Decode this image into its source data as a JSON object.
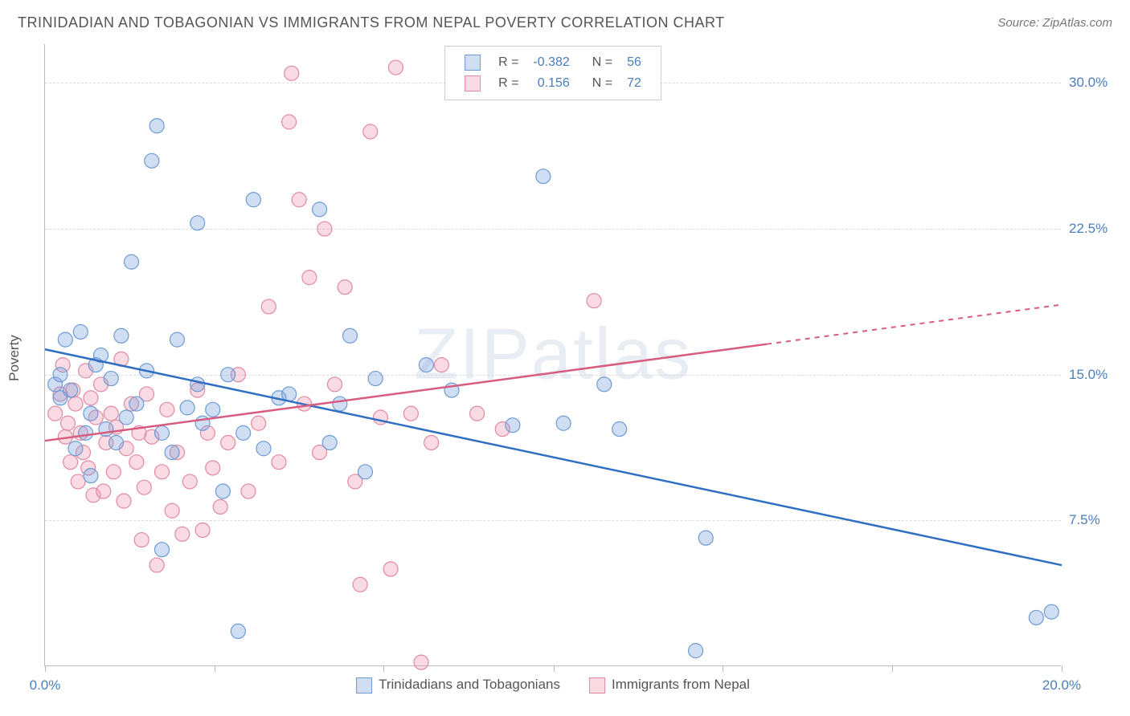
{
  "title": "TRINIDADIAN AND TOBAGONIAN VS IMMIGRANTS FROM NEPAL POVERTY CORRELATION CHART",
  "source_label": "Source:",
  "source_name": "ZipAtlas.com",
  "ylabel": "Poverty",
  "watermark": "ZIPatlas",
  "chart": {
    "type": "scatter",
    "xlim": [
      0,
      20
    ],
    "ylim": [
      0,
      32
    ],
    "xtick_positions": [
      0,
      3.33,
      6.66,
      10,
      13.33,
      16.66,
      20
    ],
    "xtick_labels_shown": {
      "0": "0.0%",
      "20": "20.0%"
    },
    "ytick_positions": [
      7.5,
      15.0,
      22.5,
      30.0
    ],
    "ytick_labels": [
      "7.5%",
      "15.0%",
      "22.5%",
      "30.0%"
    ],
    "grid_color": "#dddddd",
    "axis_color": "#bbbbbb",
    "background_color": "#ffffff",
    "series": [
      {
        "name": "Trinidadians and Tobagonians",
        "fill": "rgba(120,160,220,0.35)",
        "stroke": "#6d9bd3",
        "line_color": "#2f6fc2",
        "marker_radius": 9,
        "R": "-0.382",
        "N": "56",
        "trend": {
          "x1": 0,
          "y1": 16.3,
          "x2": 20,
          "y2": 5.2,
          "dash_after_x": null
        },
        "points": [
          [
            0.2,
            14.5
          ],
          [
            0.3,
            15.0
          ],
          [
            0.3,
            13.8
          ],
          [
            0.4,
            16.8
          ],
          [
            0.5,
            14.2
          ],
          [
            0.6,
            11.2
          ],
          [
            0.7,
            17.2
          ],
          [
            0.8,
            12.0
          ],
          [
            0.9,
            13.0
          ],
          [
            1.0,
            15.5
          ],
          [
            0.9,
            9.8
          ],
          [
            1.1,
            16.0
          ],
          [
            1.2,
            12.2
          ],
          [
            1.3,
            14.8
          ],
          [
            1.5,
            17.0
          ],
          [
            1.4,
            11.5
          ],
          [
            1.6,
            12.8
          ],
          [
            1.7,
            20.8
          ],
          [
            1.8,
            13.5
          ],
          [
            2.0,
            15.2
          ],
          [
            2.1,
            26.0
          ],
          [
            2.2,
            27.8
          ],
          [
            2.3,
            12.0
          ],
          [
            2.5,
            11.0
          ],
          [
            2.6,
            16.8
          ],
          [
            2.3,
            6.0
          ],
          [
            2.8,
            13.3
          ],
          [
            3.0,
            14.5
          ],
          [
            3.0,
            22.8
          ],
          [
            3.1,
            12.5
          ],
          [
            3.3,
            13.2
          ],
          [
            3.5,
            9.0
          ],
          [
            3.6,
            15.0
          ],
          [
            3.8,
            1.8
          ],
          [
            3.9,
            12.0
          ],
          [
            4.1,
            24.0
          ],
          [
            4.3,
            11.2
          ],
          [
            4.6,
            13.8
          ],
          [
            4.8,
            14.0
          ],
          [
            5.4,
            23.5
          ],
          [
            5.6,
            11.5
          ],
          [
            5.8,
            13.5
          ],
          [
            6.0,
            17.0
          ],
          [
            6.3,
            10.0
          ],
          [
            6.5,
            14.8
          ],
          [
            7.5,
            15.5
          ],
          [
            8.0,
            14.2
          ],
          [
            9.2,
            12.4
          ],
          [
            9.8,
            25.2
          ],
          [
            10.2,
            12.5
          ],
          [
            11.0,
            14.5
          ],
          [
            11.3,
            12.2
          ],
          [
            12.8,
            0.8
          ],
          [
            13.0,
            6.6
          ],
          [
            19.5,
            2.5
          ],
          [
            19.8,
            2.8
          ]
        ]
      },
      {
        "name": "Immigrants from Nepal",
        "fill": "rgba(240,150,175,0.35)",
        "stroke": "#e08aa2",
        "line_color": "#d85c7f",
        "marker_radius": 9,
        "R": "0.156",
        "N": "72",
        "trend": {
          "x1": 0,
          "y1": 11.6,
          "x2": 20,
          "y2": 18.6,
          "dash_after_x": 14.2
        },
        "points": [
          [
            0.2,
            13.0
          ],
          [
            0.3,
            14.0
          ],
          [
            0.35,
            15.5
          ],
          [
            0.4,
            11.8
          ],
          [
            0.45,
            12.5
          ],
          [
            0.5,
            10.5
          ],
          [
            0.55,
            14.2
          ],
          [
            0.6,
            13.5
          ],
          [
            0.65,
            9.5
          ],
          [
            0.7,
            12.0
          ],
          [
            0.75,
            11.0
          ],
          [
            0.8,
            15.2
          ],
          [
            0.85,
            10.2
          ],
          [
            0.9,
            13.8
          ],
          [
            0.95,
            8.8
          ],
          [
            1.0,
            12.8
          ],
          [
            1.1,
            14.5
          ],
          [
            1.15,
            9.0
          ],
          [
            1.2,
            11.5
          ],
          [
            1.3,
            13.0
          ],
          [
            1.35,
            10.0
          ],
          [
            1.4,
            12.3
          ],
          [
            1.5,
            15.8
          ],
          [
            1.55,
            8.5
          ],
          [
            1.6,
            11.2
          ],
          [
            1.7,
            13.5
          ],
          [
            1.8,
            10.5
          ],
          [
            1.85,
            12.0
          ],
          [
            1.9,
            6.5
          ],
          [
            1.95,
            9.2
          ],
          [
            2.0,
            14.0
          ],
          [
            2.1,
            11.8
          ],
          [
            2.2,
            5.2
          ],
          [
            2.3,
            10.0
          ],
          [
            2.4,
            13.2
          ],
          [
            2.5,
            8.0
          ],
          [
            2.6,
            11.0
          ],
          [
            2.7,
            6.8
          ],
          [
            2.85,
            9.5
          ],
          [
            3.0,
            14.2
          ],
          [
            3.1,
            7.0
          ],
          [
            3.2,
            12.0
          ],
          [
            3.3,
            10.2
          ],
          [
            3.45,
            8.2
          ],
          [
            3.6,
            11.5
          ],
          [
            3.8,
            15.0
          ],
          [
            4.0,
            9.0
          ],
          [
            4.2,
            12.5
          ],
          [
            4.4,
            18.5
          ],
          [
            4.6,
            10.5
          ],
          [
            4.8,
            28.0
          ],
          [
            4.85,
            30.5
          ],
          [
            5.0,
            24.0
          ],
          [
            5.1,
            13.5
          ],
          [
            5.2,
            20.0
          ],
          [
            5.4,
            11.0
          ],
          [
            5.5,
            22.5
          ],
          [
            5.7,
            14.5
          ],
          [
            5.9,
            19.5
          ],
          [
            6.1,
            9.5
          ],
          [
            6.2,
            4.2
          ],
          [
            6.4,
            27.5
          ],
          [
            6.6,
            12.8
          ],
          [
            6.8,
            5.0
          ],
          [
            6.9,
            30.8
          ],
          [
            7.2,
            13.0
          ],
          [
            7.4,
            0.2
          ],
          [
            7.6,
            11.5
          ],
          [
            7.8,
            15.5
          ],
          [
            8.5,
            13.0
          ],
          [
            9.0,
            12.2
          ],
          [
            10.8,
            18.8
          ]
        ]
      }
    ],
    "legend_top": {
      "R_label": "R =",
      "N_label": "N ="
    }
  }
}
